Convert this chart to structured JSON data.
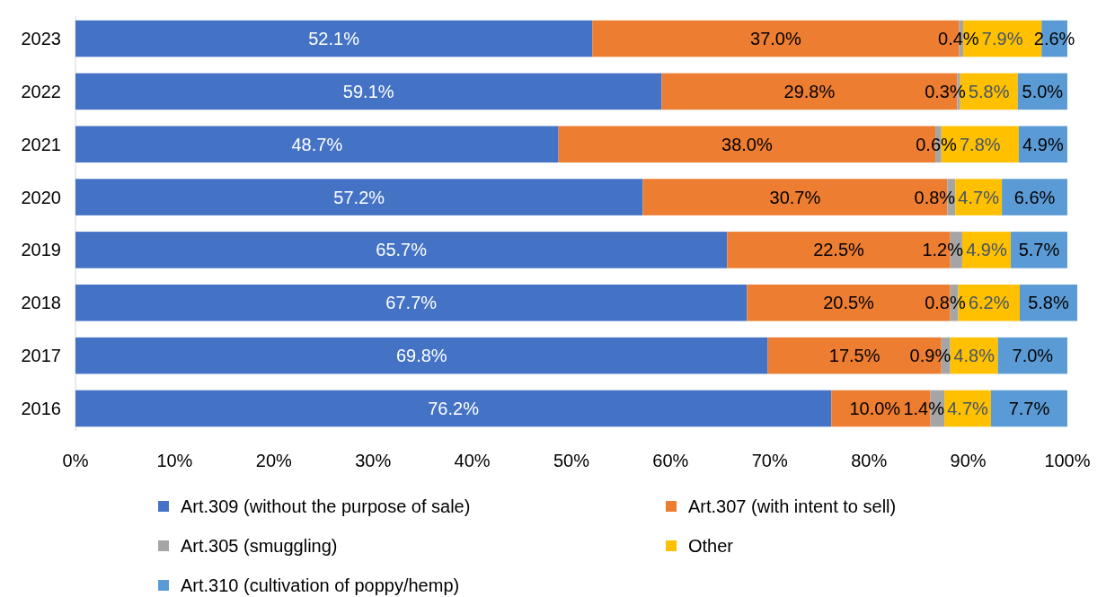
{
  "chart_data": {
    "type": "bar",
    "orientation": "horizontal",
    "stacked": true,
    "categories": [
      "2023",
      "2022",
      "2021",
      "2020",
      "2019",
      "2018",
      "2017",
      "2016"
    ],
    "series": [
      {
        "name": "Art.309 (without the purpose of sale)",
        "color": "#4472c4",
        "values": [
          52.1,
          59.1,
          48.7,
          57.2,
          65.7,
          67.7,
          69.8,
          76.2
        ],
        "value_labels": [
          "52.1%",
          "59.1%",
          "48.7%",
          "57.2%",
          "65.7%",
          "67.7%",
          "69.8%",
          "76.2%"
        ]
      },
      {
        "name": "Art.307 (with intent to sell)",
        "color": "#ed7d31",
        "values": [
          37.0,
          29.8,
          38.0,
          30.7,
          22.5,
          20.5,
          17.5,
          10.0
        ],
        "value_labels": [
          "37.0%",
          "29.8%",
          "38.0%",
          "30.7%",
          "22.5%",
          "20.5%",
          "17.5%",
          "10.0%"
        ]
      },
      {
        "name": "Art.305 (smuggling)",
        "color": "#a5a5a5",
        "values": [
          0.4,
          0.3,
          0.6,
          0.8,
          1.2,
          0.8,
          0.9,
          1.4
        ],
        "value_labels": [
          "0.4%",
          "0.3%",
          "0.6%",
          "0.8%",
          "1.2%",
          "0.8%",
          "0.9%",
          "1.4%"
        ]
      },
      {
        "name": "Other",
        "color": "#ffc000",
        "values": [
          7.9,
          5.8,
          7.8,
          4.7,
          4.9,
          6.2,
          4.8,
          4.7
        ],
        "value_labels": [
          "7.9%",
          "5.8%",
          "7.8%",
          "4.7%",
          "4.9%",
          "6.2%",
          "4.8%",
          "4.7%"
        ]
      },
      {
        "name": "Art.310 (cultivation of poppy/hemp)",
        "color": "#5b9bd5",
        "values": [
          2.6,
          5.0,
          4.9,
          6.6,
          5.7,
          5.8,
          7.0,
          7.7
        ],
        "value_labels": [
          "2.6%",
          "5.0%",
          "4.9%",
          "6.6%",
          "5.7%",
          "5.8%",
          "7.0%",
          "7.7%"
        ]
      }
    ],
    "xlim": [
      0,
      101
    ],
    "xticks": [
      {
        "value": 0,
        "label": "0%"
      },
      {
        "value": 10,
        "label": "10%"
      },
      {
        "value": 20,
        "label": "20%"
      },
      {
        "value": 30,
        "label": "30%"
      },
      {
        "value": 40,
        "label": "40%"
      },
      {
        "value": 50,
        "label": "50%"
      },
      {
        "value": 60,
        "label": "60%"
      },
      {
        "value": 70,
        "label": "70%"
      },
      {
        "value": 80,
        "label": "80%"
      },
      {
        "value": 90,
        "label": "90%"
      },
      {
        "value": 100,
        "label": "100%"
      }
    ],
    "legend": "bottom",
    "grid": false
  }
}
